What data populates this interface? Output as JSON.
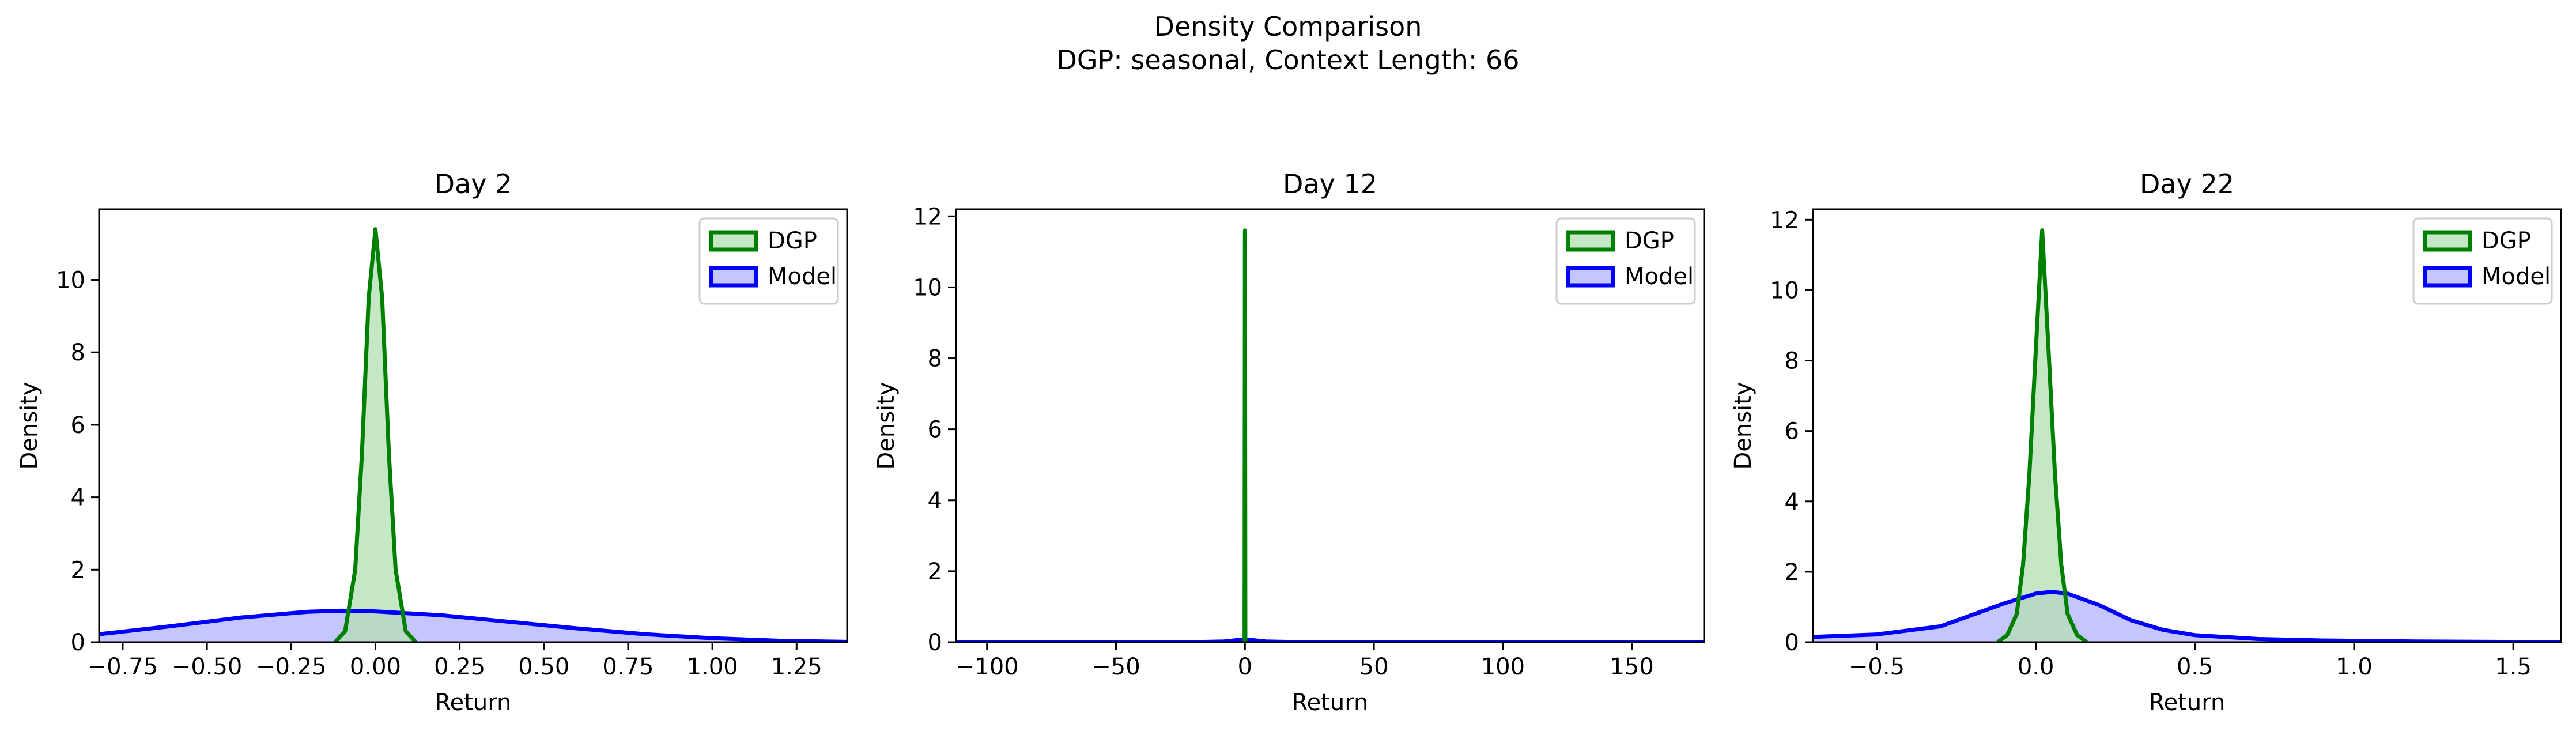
{
  "figure": {
    "title_line1": "Density Comparison",
    "title_line2": "DGP: seasonal, Context Length: 66"
  },
  "colors": {
    "dgp_line": "#008000",
    "dgp_fill": "#b2dfb2",
    "model_line": "#0000ff",
    "model_fill": "#b2b2ff"
  },
  "chart_data": [
    {
      "type": "area",
      "title": "Day 2",
      "xlabel": "Return",
      "ylabel": "Density",
      "xlim": [
        -0.82,
        1.4
      ],
      "ylim": [
        0,
        11.95
      ],
      "xticks": [
        -0.75,
        -0.5,
        -0.25,
        0.0,
        0.25,
        0.5,
        0.75,
        1.0,
        1.25
      ],
      "xtick_labels": [
        "−0.75",
        "−0.50",
        "−0.25",
        "0.00",
        "0.25",
        "0.50",
        "0.75",
        "1.00",
        "1.25"
      ],
      "yticks": [
        0,
        2,
        4,
        6,
        8,
        10
      ],
      "yticklabels": [
        "0",
        "2",
        "4",
        "6",
        "8",
        "10"
      ],
      "legend_position": "upper right",
      "series": [
        {
          "name": "DGP",
          "x": [
            -0.12,
            -0.09,
            -0.06,
            -0.04,
            -0.02,
            0.0,
            0.02,
            0.04,
            0.06,
            0.09,
            0.12
          ],
          "y": [
            0,
            0.3,
            2.0,
            5.2,
            9.5,
            11.4,
            9.5,
            5.2,
            2.0,
            0.3,
            0
          ]
        },
        {
          "name": "Model",
          "x": [
            -0.82,
            -0.6,
            -0.4,
            -0.2,
            -0.1,
            0.0,
            0.2,
            0.4,
            0.6,
            0.8,
            1.0,
            1.2,
            1.4
          ],
          "y": [
            0.22,
            0.45,
            0.68,
            0.84,
            0.87,
            0.85,
            0.74,
            0.56,
            0.38,
            0.22,
            0.11,
            0.04,
            0.01
          ]
        }
      ]
    },
    {
      "type": "area",
      "title": "Day 12",
      "xlabel": "Return",
      "ylabel": "Density",
      "xlim": [
        -112,
        178
      ],
      "ylim": [
        0,
        12.2
      ],
      "xticks": [
        -100,
        -50,
        0,
        50,
        100,
        150
      ],
      "xtick_labels": [
        "−100",
        "−50",
        "0",
        "50",
        "100",
        "150"
      ],
      "yticks": [
        0,
        2,
        4,
        6,
        8,
        10,
        12
      ],
      "yticklabels": [
        "0",
        "2",
        "4",
        "6",
        "8",
        "10",
        "12"
      ],
      "legend_position": "upper right",
      "series": [
        {
          "name": "DGP",
          "x": [
            -0.15,
            0.0,
            0.15
          ],
          "y": [
            0,
            11.6,
            0
          ]
        },
        {
          "name": "Model",
          "x": [
            -112,
            -20,
            -8,
            -3,
            0,
            3,
            8,
            20,
            178
          ],
          "y": [
            0.0,
            0.002,
            0.02,
            0.06,
            0.08,
            0.06,
            0.02,
            0.002,
            0.0
          ]
        }
      ]
    },
    {
      "type": "area",
      "title": "Day 22",
      "xlabel": "Return",
      "ylabel": "Density",
      "xlim": [
        -0.7,
        1.65
      ],
      "ylim": [
        0,
        12.3
      ],
      "xticks": [
        -0.5,
        0.0,
        0.5,
        1.0,
        1.5
      ],
      "xtick_labels": [
        "−0.5",
        "0.0",
        "0.5",
        "1.0",
        "1.5"
      ],
      "yticks": [
        0,
        2,
        4,
        6,
        8,
        10,
        12
      ],
      "yticklabels": [
        "0",
        "2",
        "4",
        "6",
        "8",
        "10",
        "12"
      ],
      "legend_position": "upper right",
      "series": [
        {
          "name": "DGP",
          "x": [
            -0.12,
            -0.09,
            -0.06,
            -0.04,
            -0.02,
            0.0,
            0.02,
            0.04,
            0.06,
            0.08,
            0.1,
            0.13,
            0.16
          ],
          "y": [
            0,
            0.2,
            0.8,
            2.2,
            4.8,
            8.3,
            11.7,
            8.3,
            4.8,
            2.2,
            0.8,
            0.2,
            0
          ]
        },
        {
          "name": "Model",
          "x": [
            -0.7,
            -0.5,
            -0.3,
            -0.1,
            0.0,
            0.05,
            0.1,
            0.2,
            0.3,
            0.4,
            0.5,
            0.7,
            0.9,
            1.2,
            1.65
          ],
          "y": [
            0.15,
            0.22,
            0.45,
            1.1,
            1.38,
            1.43,
            1.38,
            1.05,
            0.62,
            0.35,
            0.2,
            0.09,
            0.05,
            0.02,
            0.0
          ]
        }
      ]
    }
  ]
}
